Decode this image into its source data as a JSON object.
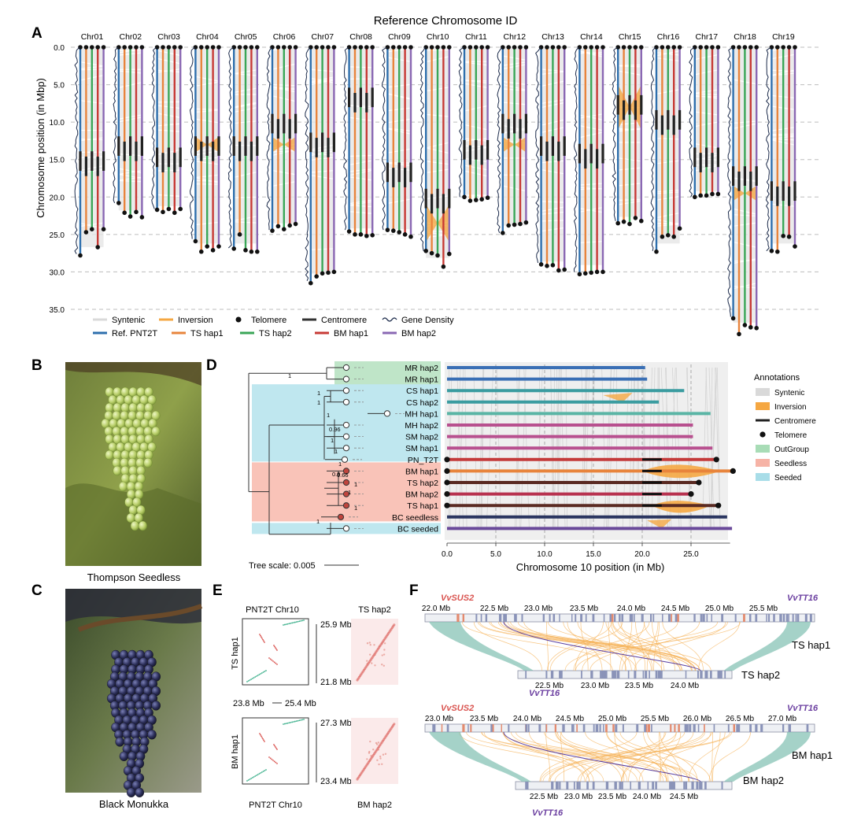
{
  "panel_letters": [
    "A",
    "B",
    "C",
    "D",
    "E",
    "F"
  ],
  "panel_a": {
    "title": "Reference Chromosome ID",
    "ylabel": "Chromosome position (in Mbp)",
    "y_ticks": [
      "0.0",
      "5.0",
      "10.0",
      "15.0",
      "20.0",
      "25.0",
      "30.0",
      "35.0"
    ],
    "legend": [
      {
        "label": "Syntenic",
        "swatch": "line",
        "color": "#d9d9d9"
      },
      {
        "label": "Inversion",
        "swatch": "line",
        "color": "#f5a742"
      },
      {
        "label": "Telomere",
        "swatch": "dot",
        "color": "#111111"
      },
      {
        "label": "Centromere",
        "swatch": "line",
        "color": "#333333"
      },
      {
        "label": "Gene Density",
        "swatch": "wave",
        "color": "#1b2a4a"
      },
      {
        "label": "Ref. PNT2T",
        "swatch": "line",
        "color": "#2e6fad"
      },
      {
        "label": "TS hap1",
        "swatch": "line",
        "color": "#e8843c"
      },
      {
        "label": "TS hap2",
        "swatch": "line",
        "color": "#3aa657"
      },
      {
        "label": "BM hap1",
        "swatch": "line",
        "color": "#c73a35"
      },
      {
        "label": "BM hap2",
        "swatch": "line",
        "color": "#8a68b3"
      }
    ],
    "track_colors": [
      "#2e6fad",
      "#e8843c",
      "#3aa657",
      "#c73a35",
      "#8a68b3"
    ]
  },
  "chart_data": {
    "type": "bar",
    "title": "Reference Chromosome ID",
    "xlabel": "",
    "ylabel": "Chromosome position (in Mbp)",
    "ylim": [
      0,
      38
    ],
    "categories": [
      "Chr01",
      "Chr02",
      "Chr03",
      "Chr04",
      "Chr05",
      "Chr06",
      "Chr07",
      "Chr08",
      "Chr09",
      "Chr10",
      "Chr11",
      "Chr12",
      "Chr13",
      "Chr14",
      "Chr15",
      "Chr16",
      "Chr17",
      "Chr18",
      "Chr19"
    ],
    "series": [
      {
        "name": "Ref. PNT2T",
        "values": [
          27.8,
          20.8,
          21.7,
          25.9,
          26.9,
          24.5,
          31.5,
          24.6,
          24.4,
          27.2,
          20.0,
          24.8,
          29.0,
          30.3,
          23.5,
          27.3,
          20.0,
          36.2,
          27.2
        ]
      },
      {
        "name": "TS hap1",
        "values": [
          24.7,
          22.1,
          22.0,
          27.3,
          25.0,
          23.9,
          30.6,
          25.0,
          24.5,
          27.5,
          20.5,
          23.8,
          29.2,
          30.2,
          23.3,
          25.3,
          19.8,
          38.3,
          27.3
        ]
      },
      {
        "name": "TS hap2",
        "values": [
          24.3,
          22.6,
          21.6,
          26.6,
          27.1,
          24.3,
          30.2,
          25.0,
          24.7,
          27.8,
          20.4,
          23.7,
          29.1,
          30.1,
          23.6,
          25.1,
          19.8,
          37.1,
          25.2
        ]
      },
      {
        "name": "BM hap1",
        "values": [
          26.7,
          22.0,
          22.1,
          27.1,
          27.3,
          23.8,
          30.1,
          25.2,
          25.0,
          29.3,
          20.3,
          23.6,
          29.8,
          30.0,
          22.8,
          25.3,
          19.6,
          37.4,
          25.3
        ]
      },
      {
        "name": "BM hap2",
        "values": [
          24.3,
          22.7,
          21.6,
          26.6,
          27.3,
          23.6,
          30.0,
          25.1,
          25.3,
          27.6,
          20.1,
          23.4,
          29.7,
          30.0,
          23.2,
          24.2,
          19.6,
          37.5,
          26.6
        ]
      }
    ],
    "centromere_mb": [
      15.5,
      13.5,
      15.0,
      13.5,
      13.5,
      10.5,
      13.0,
      7.0,
      17.0,
      20.5,
      14.0,
      10.5,
      13.5,
      14.5,
      8.0,
      10.0,
      15.0,
      17.5,
      19.5
    ]
  },
  "panel_b": {
    "caption": "Thompson Seedless"
  },
  "panel_c": {
    "caption": "Black Monukka"
  },
  "panel_d": {
    "tree_leaves": [
      {
        "label": "MR hap2",
        "group": "outgroup",
        "node": "open"
      },
      {
        "label": "MR hap1",
        "group": "outgroup",
        "node": "open"
      },
      {
        "label": "CS hap1",
        "group": "seeded",
        "node": "open"
      },
      {
        "label": "CS hap2",
        "group": "seeded",
        "node": "open"
      },
      {
        "label": "MH hap1",
        "group": "seeded",
        "node": "open"
      },
      {
        "label": "MH hap2",
        "group": "seeded",
        "node": "open"
      },
      {
        "label": "SM hap2",
        "group": "seeded",
        "node": "open"
      },
      {
        "label": "SM hap1",
        "group": "seeded",
        "node": "open"
      },
      {
        "label": "PN_T2T",
        "group": "seeded",
        "node": "open"
      },
      {
        "label": "BM hap1",
        "group": "seedless",
        "node": "filled"
      },
      {
        "label": "TS hap2",
        "group": "seedless",
        "node": "filled"
      },
      {
        "label": "BM hap2",
        "group": "seedless",
        "node": "filled"
      },
      {
        "label": "TS hap1",
        "group": "seedless",
        "node": "filled"
      },
      {
        "label": "BC seedless",
        "group": "seedless",
        "node": "filled"
      },
      {
        "label": "BC seeded",
        "group": "seeded",
        "node": "open"
      }
    ],
    "bootstrap_labels": [
      "1",
      "1",
      "1",
      "1",
      "0.96",
      "1",
      "1",
      "1",
      "0.9",
      "0.66",
      "1",
      "1",
      "1",
      "1"
    ],
    "tree_scale_label": "Tree scale: 0.005",
    "xlabel": "Chromosome 10 position (in Mb)",
    "x_ticks": [
      "0.0",
      "5.0",
      "10.0",
      "15.0",
      "20.0",
      "25.0"
    ],
    "track_lengths_mb": [
      20.3,
      20.5,
      24.3,
      21.7,
      27.0,
      25.2,
      25.2,
      27.2,
      27.6,
      29.3,
      25.8,
      25.0,
      27.8,
      28.7,
      29.2
    ],
    "track_colors": [
      "#3a6fb5",
      "#3a6fb5",
      "#3a9ca0",
      "#3a9ca0",
      "#5ab5a5",
      "#b8508f",
      "#b8508f",
      "#b8508f",
      "#c43a3a",
      "#e8843c",
      "#5a2a22",
      "#b8324f",
      "#5a2a22",
      "#2a3560",
      "#6a4a9a"
    ],
    "legend_title": "Annotations",
    "legend": [
      {
        "label": "Syntenic",
        "swatch": "bar",
        "color": "#d9d9d9"
      },
      {
        "label": "Inversion",
        "swatch": "bar",
        "color": "#f5a742"
      },
      {
        "label": "Centromere",
        "swatch": "line",
        "color": "#222222"
      },
      {
        "label": "Telomere",
        "swatch": "dot",
        "color": "#111111"
      },
      {
        "label": "OutGroup",
        "swatch": "bar",
        "color": "#a8dcb6"
      },
      {
        "label": "Seedless",
        "swatch": "bar",
        "color": "#f6b3a6"
      },
      {
        "label": "Seeded",
        "swatch": "bar",
        "color": "#a8dde8"
      }
    ]
  },
  "panel_e": {
    "top_title": "PNT2T Chr10",
    "top_right_title": "TS hap2",
    "top_ylabel": "TS hap1",
    "top_hi": "25.9 Mb",
    "top_lo": "21.8 Mb",
    "scale_left": "23.8 Mb",
    "scale_right": "25.4 Mb",
    "bottom_ylabel": "BM hap1",
    "bottom_hi": "27.3 Mb",
    "bottom_lo": "23.4 Mb",
    "bottom_title": "PNT2T Chr10",
    "bottom_right_title": "BM hap2"
  },
  "panel_f": {
    "top_ticks": [
      "22.0 Mb",
      "22.5 Mb",
      "23.0 Mb",
      "23.5 Mb",
      "24.0 Mb",
      "24.5 Mb",
      "25.0 Mb",
      "25.5 Mb"
    ],
    "top_hap1_label": "TS hap1",
    "top_hap2_label": "TS hap2",
    "top_hap2_ticks": [
      "22.5 Mb",
      "23.0 Mb",
      "23.5 Mb",
      "24.0 Mb"
    ],
    "bottom_ticks": [
      "23.0 Mb",
      "23.5 Mb",
      "24.0 Mb",
      "24.5 Mb",
      "25.0 Mb",
      "25.5 Mb",
      "26.0 Mb",
      "26.5 Mb",
      "27.0 Mb"
    ],
    "bottom_hap1_label": "BM hap1",
    "bottom_hap2_label": "BM hap2",
    "bottom_hap2_ticks": [
      "22.5 Mb",
      "23.0 Mb",
      "23.5 Mb",
      "24.0 Mb",
      "24.5 Mb"
    ],
    "gene_sus2": "VvSUS2",
    "gene_tt16": "VvTT16",
    "sus2_color": "#d9534f",
    "tt16_color": "#6b3fa0"
  }
}
